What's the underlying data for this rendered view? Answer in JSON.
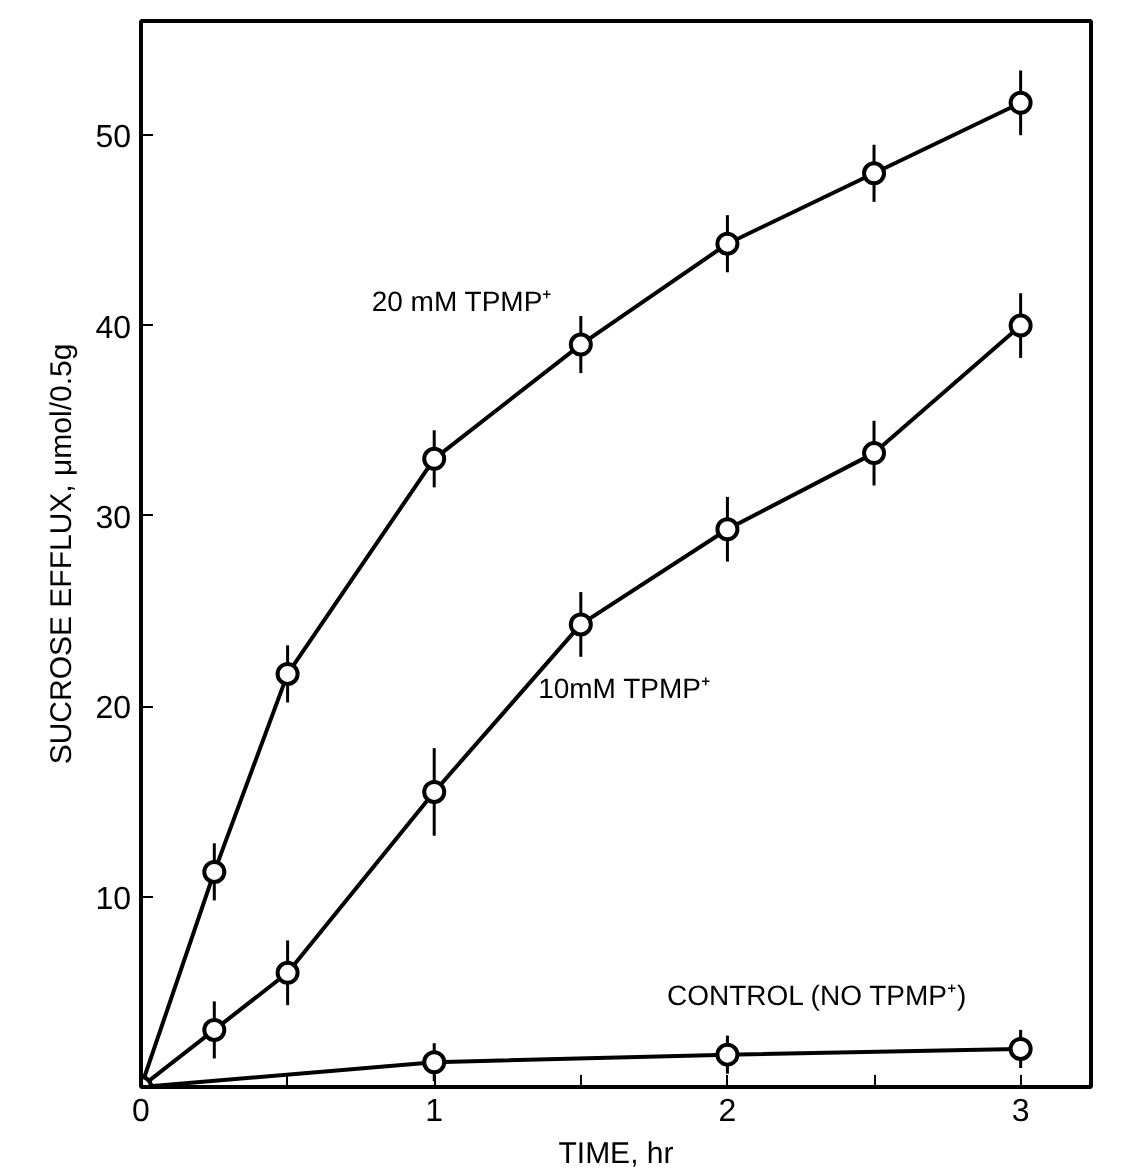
{
  "chart_data": {
    "type": "line",
    "xlabel": "TIME, hr",
    "ylabel": "SUCROSE EFFLUX, μmol/0.5g",
    "x": [
      0,
      0.25,
      0.5,
      1,
      1.5,
      2,
      2.5,
      3
    ],
    "series": [
      {
        "name": "20 mM TPMP⁺",
        "color": "#000000",
        "values": [
          0,
          11.3,
          21.7,
          33,
          39,
          44.3,
          48,
          51.7
        ],
        "errors": [
          null,
          1.5,
          1.5,
          1.5,
          1.5,
          1.5,
          1.5,
          1.7
        ]
      },
      {
        "name": "10mM TPMP⁺",
        "color": "#000000",
        "values": [
          0,
          3,
          6,
          15.5,
          24.3,
          29.3,
          33.3,
          40
        ],
        "errors": [
          null,
          1.5,
          1.7,
          2.3,
          1.7,
          1.7,
          1.7,
          1.7
        ]
      },
      {
        "name": "CONTROL (NO TPMP⁺)",
        "color": "#000000",
        "x": [
          0,
          1,
          2,
          3
        ],
        "values": [
          0,
          1.3,
          1.7,
          2
        ],
        "errors": [
          null,
          1,
          1,
          1
        ]
      }
    ],
    "xlim": [
      0,
      3.24
    ],
    "ylim": [
      0,
      56
    ],
    "xticks": [
      0,
      {
        "value": 0.5,
        "label": null
      },
      1,
      {
        "value": 1.5,
        "label": null
      },
      2,
      {
        "value": 2.5,
        "label": null
      },
      3
    ],
    "yticks": [
      10,
      20,
      30,
      40,
      50
    ],
    "marker": "circle",
    "line_style": "solid",
    "grid": false
  }
}
